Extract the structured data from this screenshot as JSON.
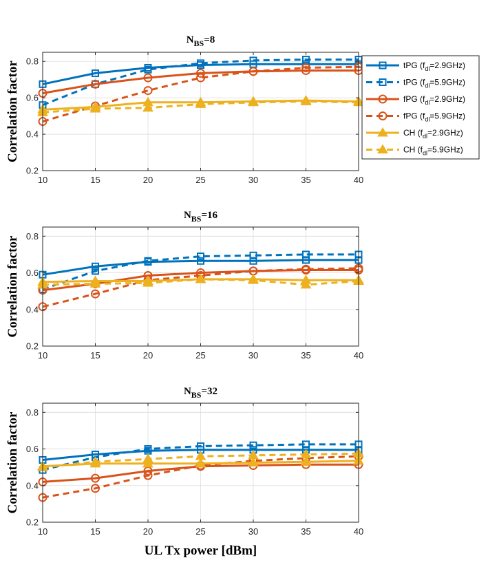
{
  "chart_data": [
    {
      "type": "line",
      "title": "N",
      "title_sub": "BS",
      "title_suffix": "=8",
      "xlabel": "",
      "ylabel": "Correlation factor",
      "xlim": [
        10,
        40
      ],
      "ylim": [
        0.2,
        0.85
      ],
      "xticks": [
        10,
        15,
        20,
        25,
        30,
        35,
        40
      ],
      "yticks": [
        0.2,
        0.4,
        0.6,
        0.8
      ],
      "grid": true,
      "legend": "outside-right",
      "x": [
        10,
        15,
        20,
        25,
        30,
        35,
        40
      ],
      "series": [
        {
          "name": "tPG (fdl=2.9GHz)",
          "values": [
            0.675,
            0.735,
            0.765,
            0.78,
            0.785,
            0.785,
            0.785
          ]
        },
        {
          "name": "tPG (fdl=5.9GHz)",
          "values": [
            0.56,
            0.675,
            0.755,
            0.79,
            0.805,
            0.81,
            0.81
          ]
        },
        {
          "name": "fPG (fdl=2.9GHz)",
          "values": [
            0.625,
            0.675,
            0.71,
            0.735,
            0.745,
            0.75,
            0.75
          ]
        },
        {
          "name": "fPG (fdl=5.9GHz)",
          "values": [
            0.47,
            0.555,
            0.64,
            0.71,
            0.745,
            0.765,
            0.77
          ]
        },
        {
          "name": "CH (fdl=2.9GHz)",
          "values": [
            0.535,
            0.55,
            0.575,
            0.575,
            0.58,
            0.585,
            0.58
          ]
        },
        {
          "name": "CH (fdl=5.9GHz)",
          "values": [
            0.52,
            0.54,
            0.545,
            0.565,
            0.575,
            0.58,
            0.575
          ]
        }
      ]
    },
    {
      "type": "line",
      "title": "N",
      "title_sub": "BS",
      "title_suffix": "=16",
      "xlabel": "",
      "ylabel": "Correlation factor",
      "xlim": [
        10,
        40
      ],
      "ylim": [
        0.2,
        0.85
      ],
      "xticks": [
        10,
        15,
        20,
        25,
        30,
        35,
        40
      ],
      "yticks": [
        0.2,
        0.4,
        0.6,
        0.8
      ],
      "grid": true,
      "x": [
        10,
        15,
        20,
        25,
        30,
        35,
        40
      ],
      "series": [
        {
          "name": "tPG (fdl=2.9GHz)",
          "values": [
            0.59,
            0.635,
            0.66,
            0.665,
            0.665,
            0.67,
            0.67
          ]
        },
        {
          "name": "tPG (fdl=5.9GHz)",
          "values": [
            0.51,
            0.61,
            0.665,
            0.69,
            0.695,
            0.7,
            0.7
          ]
        },
        {
          "name": "fPG (fdl=2.9GHz)",
          "values": [
            0.505,
            0.54,
            0.585,
            0.6,
            0.61,
            0.615,
            0.615
          ]
        },
        {
          "name": "fPG (fdl=5.9GHz)",
          "values": [
            0.415,
            0.485,
            0.56,
            0.585,
            0.61,
            0.62,
            0.625
          ]
        },
        {
          "name": "CH (fdl=2.9GHz)",
          "values": [
            0.55,
            0.555,
            0.555,
            0.565,
            0.565,
            0.56,
            0.56
          ]
        },
        {
          "name": "CH (fdl=5.9GHz)",
          "values": [
            0.535,
            0.54,
            0.545,
            0.565,
            0.56,
            0.535,
            0.555
          ]
        }
      ]
    },
    {
      "type": "line",
      "title": "N",
      "title_sub": "BS",
      "title_suffix": "=32",
      "xlabel": "UL Tx power [dBm]",
      "ylabel": "Correlation factor",
      "xlim": [
        10,
        40
      ],
      "ylim": [
        0.2,
        0.85
      ],
      "xticks": [
        10,
        15,
        20,
        25,
        30,
        35,
        40
      ],
      "yticks": [
        0.2,
        0.4,
        0.6,
        0.8
      ],
      "grid": true,
      "x": [
        10,
        15,
        20,
        25,
        30,
        35,
        40
      ],
      "series": [
        {
          "name": "tPG (fdl=2.9GHz)",
          "values": [
            0.54,
            0.57,
            0.59,
            0.595,
            0.595,
            0.595,
            0.595
          ]
        },
        {
          "name": "tPG (fdl=5.9GHz)",
          "values": [
            0.485,
            0.555,
            0.6,
            0.615,
            0.62,
            0.625,
            0.625
          ]
        },
        {
          "name": "fPG (fdl=2.9GHz)",
          "values": [
            0.42,
            0.44,
            0.48,
            0.505,
            0.51,
            0.515,
            0.515
          ]
        },
        {
          "name": "fPG (fdl=5.9GHz)",
          "values": [
            0.335,
            0.385,
            0.455,
            0.51,
            0.535,
            0.55,
            0.56
          ]
        },
        {
          "name": "CH (fdl=2.9GHz)",
          "values": [
            0.505,
            0.52,
            0.52,
            0.52,
            0.525,
            0.53,
            0.535
          ]
        },
        {
          "name": "CH (fdl=5.9GHz)",
          "values": [
            0.5,
            0.53,
            0.545,
            0.56,
            0.565,
            0.57,
            0.575
          ]
        }
      ]
    }
  ],
  "legend": {
    "entries": [
      {
        "label_pre": "tPG (f",
        "label_sub": "dl",
        "label_post": "=2.9GHz)",
        "color": "#0072BD",
        "dashed": false,
        "marker": "square"
      },
      {
        "label_pre": "tPG (f",
        "label_sub": "dl",
        "label_post": "=5.9GHz)",
        "color": "#0072BD",
        "dashed": true,
        "marker": "square"
      },
      {
        "label_pre": "fPG (f",
        "label_sub": "dl",
        "label_post": "=2.9GHz)",
        "color": "#D95319",
        "dashed": false,
        "marker": "circle"
      },
      {
        "label_pre": "fPG (f",
        "label_sub": "dl",
        "label_post": "=5.9GHz)",
        "color": "#D95319",
        "dashed": true,
        "marker": "circle"
      },
      {
        "label_pre": "CH (f",
        "label_sub": "dl",
        "label_post": "=2.9GHz)",
        "color": "#EDB120",
        "dashed": false,
        "marker": "triangle"
      },
      {
        "label_pre": "CH (f",
        "label_sub": "dl",
        "label_post": "=5.9GHz)",
        "color": "#EDB120",
        "dashed": true,
        "marker": "triangle"
      }
    ]
  }
}
